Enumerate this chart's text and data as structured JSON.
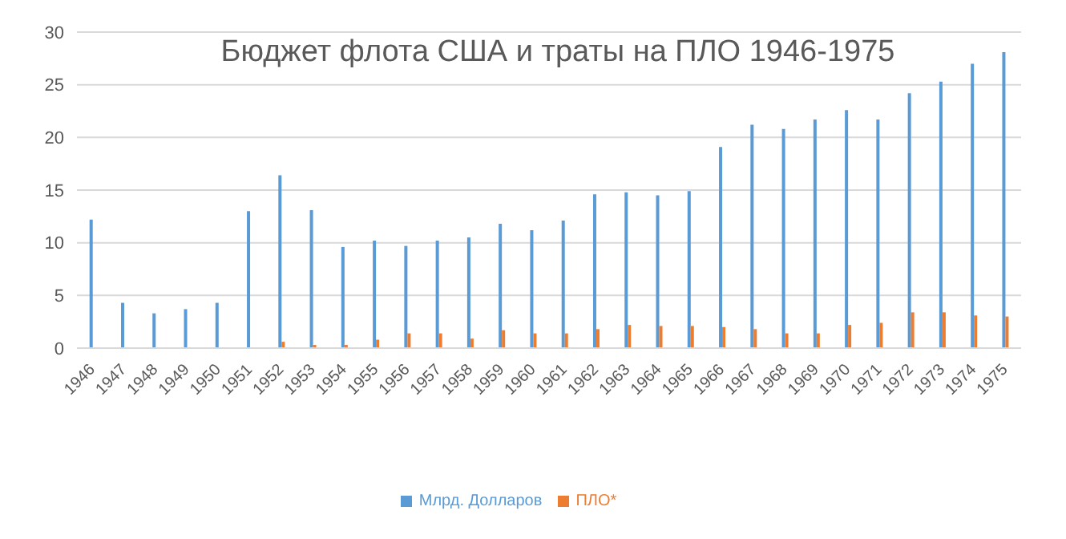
{
  "chart_data": {
    "type": "bar",
    "title": "Бюджет флота США и траты на ПЛО 1946-1975",
    "categories": [
      "1946",
      "1947",
      "1948",
      "1949",
      "1950",
      "1951",
      "1952",
      "1953",
      "1954",
      "1955",
      "1956",
      "1957",
      "1958",
      "1959",
      "1960",
      "1961",
      "1962",
      "1963",
      "1964",
      "1965",
      "1966",
      "1967",
      "1968",
      "1969",
      "1970",
      "1971",
      "1972",
      "1973",
      "1974",
      "1975"
    ],
    "series": [
      {
        "name": "Млрд. Долларов",
        "color": "#5b9bd5",
        "values": [
          12.2,
          4.3,
          3.3,
          3.7,
          4.3,
          13,
          16.4,
          13.1,
          9.6,
          10.2,
          9.7,
          10.2,
          10.5,
          11.8,
          11.2,
          12.1,
          14.6,
          14.8,
          14.5,
          14.9,
          19.1,
          21.2,
          20.8,
          21.7,
          22.6,
          21.7,
          24.2,
          25.3,
          27,
          28.1
        ]
      },
      {
        "name": "ПЛО*",
        "color": "#ed7d31",
        "values": [
          null,
          null,
          null,
          null,
          null,
          null,
          0.6,
          0.3,
          0.3,
          0.8,
          1.4,
          1.4,
          0.9,
          1.7,
          1.4,
          1.4,
          1.8,
          2.2,
          2.1,
          2.1,
          2.0,
          1.8,
          1.4,
          1.4,
          2.2,
          2.4,
          3.4,
          3.4,
          3.1,
          3.0
        ]
      }
    ],
    "ylim": [
      0,
      30
    ],
    "yticks": [
      0,
      5,
      10,
      15,
      20,
      25,
      30
    ],
    "grid": "y",
    "legend": "bottom"
  }
}
